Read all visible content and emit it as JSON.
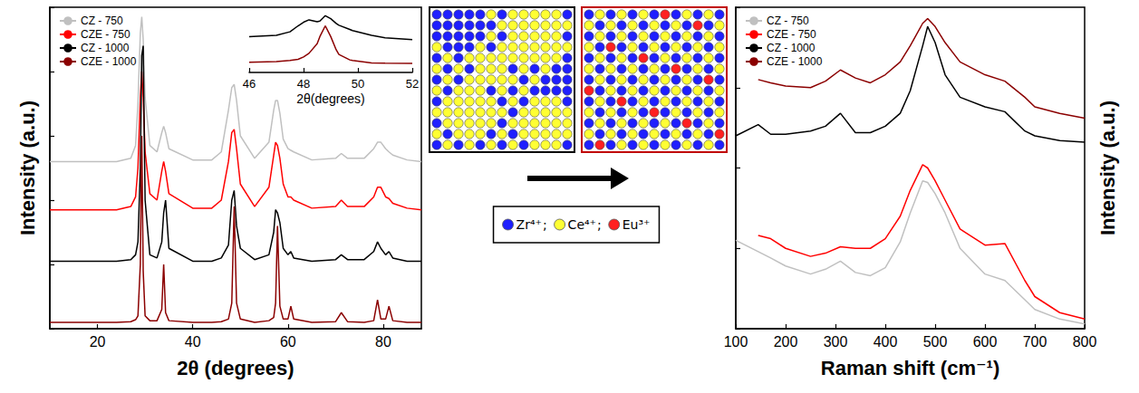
{
  "chart_data": [
    {
      "type": "line",
      "xlabel": "2θ (degrees)",
      "ylabel": "Intensity (a.u.)",
      "x": [
        10,
        20,
        24,
        27,
        28,
        28.5,
        29,
        29.3,
        29.6,
        30,
        31,
        32.5,
        33.5,
        33.9,
        34.3,
        35,
        40,
        44,
        46,
        47.5,
        48.2,
        48.7,
        49.2,
        50,
        53,
        56,
        57,
        57.4,
        57.8,
        58.3,
        59,
        60,
        60.6,
        61.2,
        65,
        70,
        71.2,
        72.5,
        76,
        78,
        78.8,
        79.5,
        80.5,
        81.2,
        82,
        85,
        88
      ],
      "series": [
        {
          "name": "CZ - 750",
          "color": "#c0c0c0",
          "values": [
            52,
            52,
            52,
            53,
            57,
            70,
            92,
            97,
            90,
            72,
            57,
            55,
            61,
            63,
            61,
            56,
            52.5,
            52.5,
            55,
            68,
            75,
            76,
            71,
            60,
            53,
            58,
            68,
            71,
            71,
            67,
            59,
            56,
            55.5,
            55,
            52.5,
            53,
            54.5,
            53,
            53,
            56,
            58,
            58,
            56,
            55,
            54,
            52.5,
            52
          ]
        },
        {
          "name": "CZE - 750",
          "color": "#ff0000",
          "values": [
            37,
            37,
            37,
            38,
            41,
            50,
            72,
            80,
            72,
            55,
            42,
            40,
            49,
            52,
            49,
            42,
            37.5,
            37.5,
            40,
            52,
            61,
            62,
            56,
            45,
            38,
            44,
            54,
            58,
            57,
            53,
            45,
            41,
            41,
            40,
            37.5,
            38,
            40,
            38,
            38,
            41,
            44,
            44,
            41,
            40.5,
            39,
            37.5,
            37
          ]
        },
        {
          "name": "CZ - 1000",
          "color": "#000000",
          "values": [
            21,
            21,
            21,
            21.5,
            23,
            27,
            50,
            85,
            88,
            40,
            23,
            22,
            27,
            36,
            40,
            25,
            21,
            21,
            22,
            26,
            40,
            43,
            32,
            25,
            21.5,
            23,
            30,
            37,
            36,
            33,
            25,
            23,
            24,
            22,
            21,
            21.5,
            23,
            21.5,
            21.5,
            24,
            27,
            25,
            23,
            24,
            22,
            21,
            21
          ]
        },
        {
          "name": "CZE - 1000",
          "color": "#8b0000",
          "values": [
            2,
            2,
            2,
            2.2,
            2.8,
            4,
            20,
            60,
            18,
            4,
            2.5,
            2.5,
            6,
            20,
            5,
            2.5,
            2,
            2,
            2.2,
            3,
            8,
            38,
            8,
            3,
            2,
            2.5,
            3.5,
            8,
            32,
            7,
            3,
            3,
            7,
            3,
            2,
            2.2,
            5,
            2.2,
            2,
            2.5,
            9,
            3,
            3,
            7,
            2.5,
            2,
            2
          ]
        }
      ],
      "xlim": [
        10,
        88
      ],
      "xticks": [
        20,
        40,
        60,
        80
      ],
      "ylim": [
        0,
        100
      ],
      "yticks": [
        0,
        20,
        40,
        60,
        80,
        100
      ],
      "tick_labels": "x",
      "grid": false,
      "legend": "upper left"
    },
    {
      "type": "line",
      "xlabel": "2θ(degrees)",
      "x": [
        46,
        47,
        47.5,
        47.8,
        48,
        48.2,
        48.5,
        48.6,
        48.8,
        49,
        49.2,
        49.3,
        49.7,
        49.8,
        50.5,
        51,
        52
      ],
      "series": [
        {
          "color": "#000000",
          "values": [
            60,
            62,
            68,
            78,
            84,
            88,
            85,
            86,
            95,
            90,
            82,
            79,
            72,
            70,
            62,
            58,
            55
          ]
        },
        {
          "color": "#8b0000",
          "values": [
            17,
            18,
            20,
            22,
            26,
            32,
            48,
            60,
            78,
            60,
            38,
            30,
            21,
            20,
            16,
            15.5,
            15
          ]
        }
      ],
      "xlim": [
        46,
        52
      ],
      "xticks": [
        46,
        48,
        50,
        52
      ],
      "ylim": [
        0,
        100
      ],
      "tick_labels": "x",
      "grid": false
    },
    {
      "type": "line",
      "xlabel": "Raman shift (cm⁻¹)",
      "ylabel": "Intensity (a.u.)",
      "x": [
        100,
        145,
        170,
        200,
        250,
        280,
        310,
        340,
        370,
        400,
        430,
        450,
        475,
        485,
        500,
        520,
        550,
        600,
        640,
        680,
        700,
        750,
        800
      ],
      "series": [
        {
          "name": "CZ - 750",
          "color": "#c0c0c0",
          "values": [
            27.5,
            24,
            22,
            19.5,
            17,
            18.5,
            21,
            17.5,
            16.5,
            19,
            27,
            36,
            46,
            45.5,
            42,
            36,
            25,
            17,
            15,
            9,
            6,
            3,
            1.5
          ]
        },
        {
          "name": "CZE - 750",
          "color": "#ff0000",
          "values": [
            null,
            29,
            28,
            25,
            22.5,
            23.5,
            25.5,
            25,
            25,
            28,
            35,
            43,
            51,
            50,
            46,
            40,
            31,
            26,
            26.5,
            15,
            10,
            5,
            3
          ]
        },
        {
          "name": "CZ - 1000",
          "color": "#000000",
          "values": [
            60,
            63.5,
            60.5,
            60.5,
            61.5,
            63,
            67,
            61,
            61,
            63,
            67,
            74,
            88,
            94,
            89,
            79,
            72,
            69,
            67.5,
            61.5,
            60,
            58.5,
            58
          ]
        },
        {
          "name": "CZE - 1000",
          "color": "#8b0000",
          "values": [
            null,
            77.5,
            76.5,
            75.5,
            75,
            77,
            80.5,
            78,
            76.5,
            79,
            83,
            88,
            95,
            96.5,
            94,
            89,
            83,
            79,
            77,
            72,
            69,
            67,
            65.5
          ]
        }
      ],
      "xlim": [
        100,
        800
      ],
      "xticks": [
        100,
        200,
        300,
        400,
        500,
        600,
        700,
        800
      ],
      "ylim": [
        0,
        100
      ],
      "yticks": [
        0,
        25,
        50,
        75,
        100
      ],
      "tick_labels": "x",
      "grid": false,
      "legend": "upper left"
    }
  ],
  "diagram": {
    "ions": [
      {
        "label": "Zr⁴⁺",
        "color": "#1f1fff"
      },
      {
        "label": "Ce⁴⁺",
        "color": "#ffff33"
      },
      {
        "label": "Eu³⁺",
        "color": "#ff2020"
      }
    ],
    "separator": ";"
  }
}
